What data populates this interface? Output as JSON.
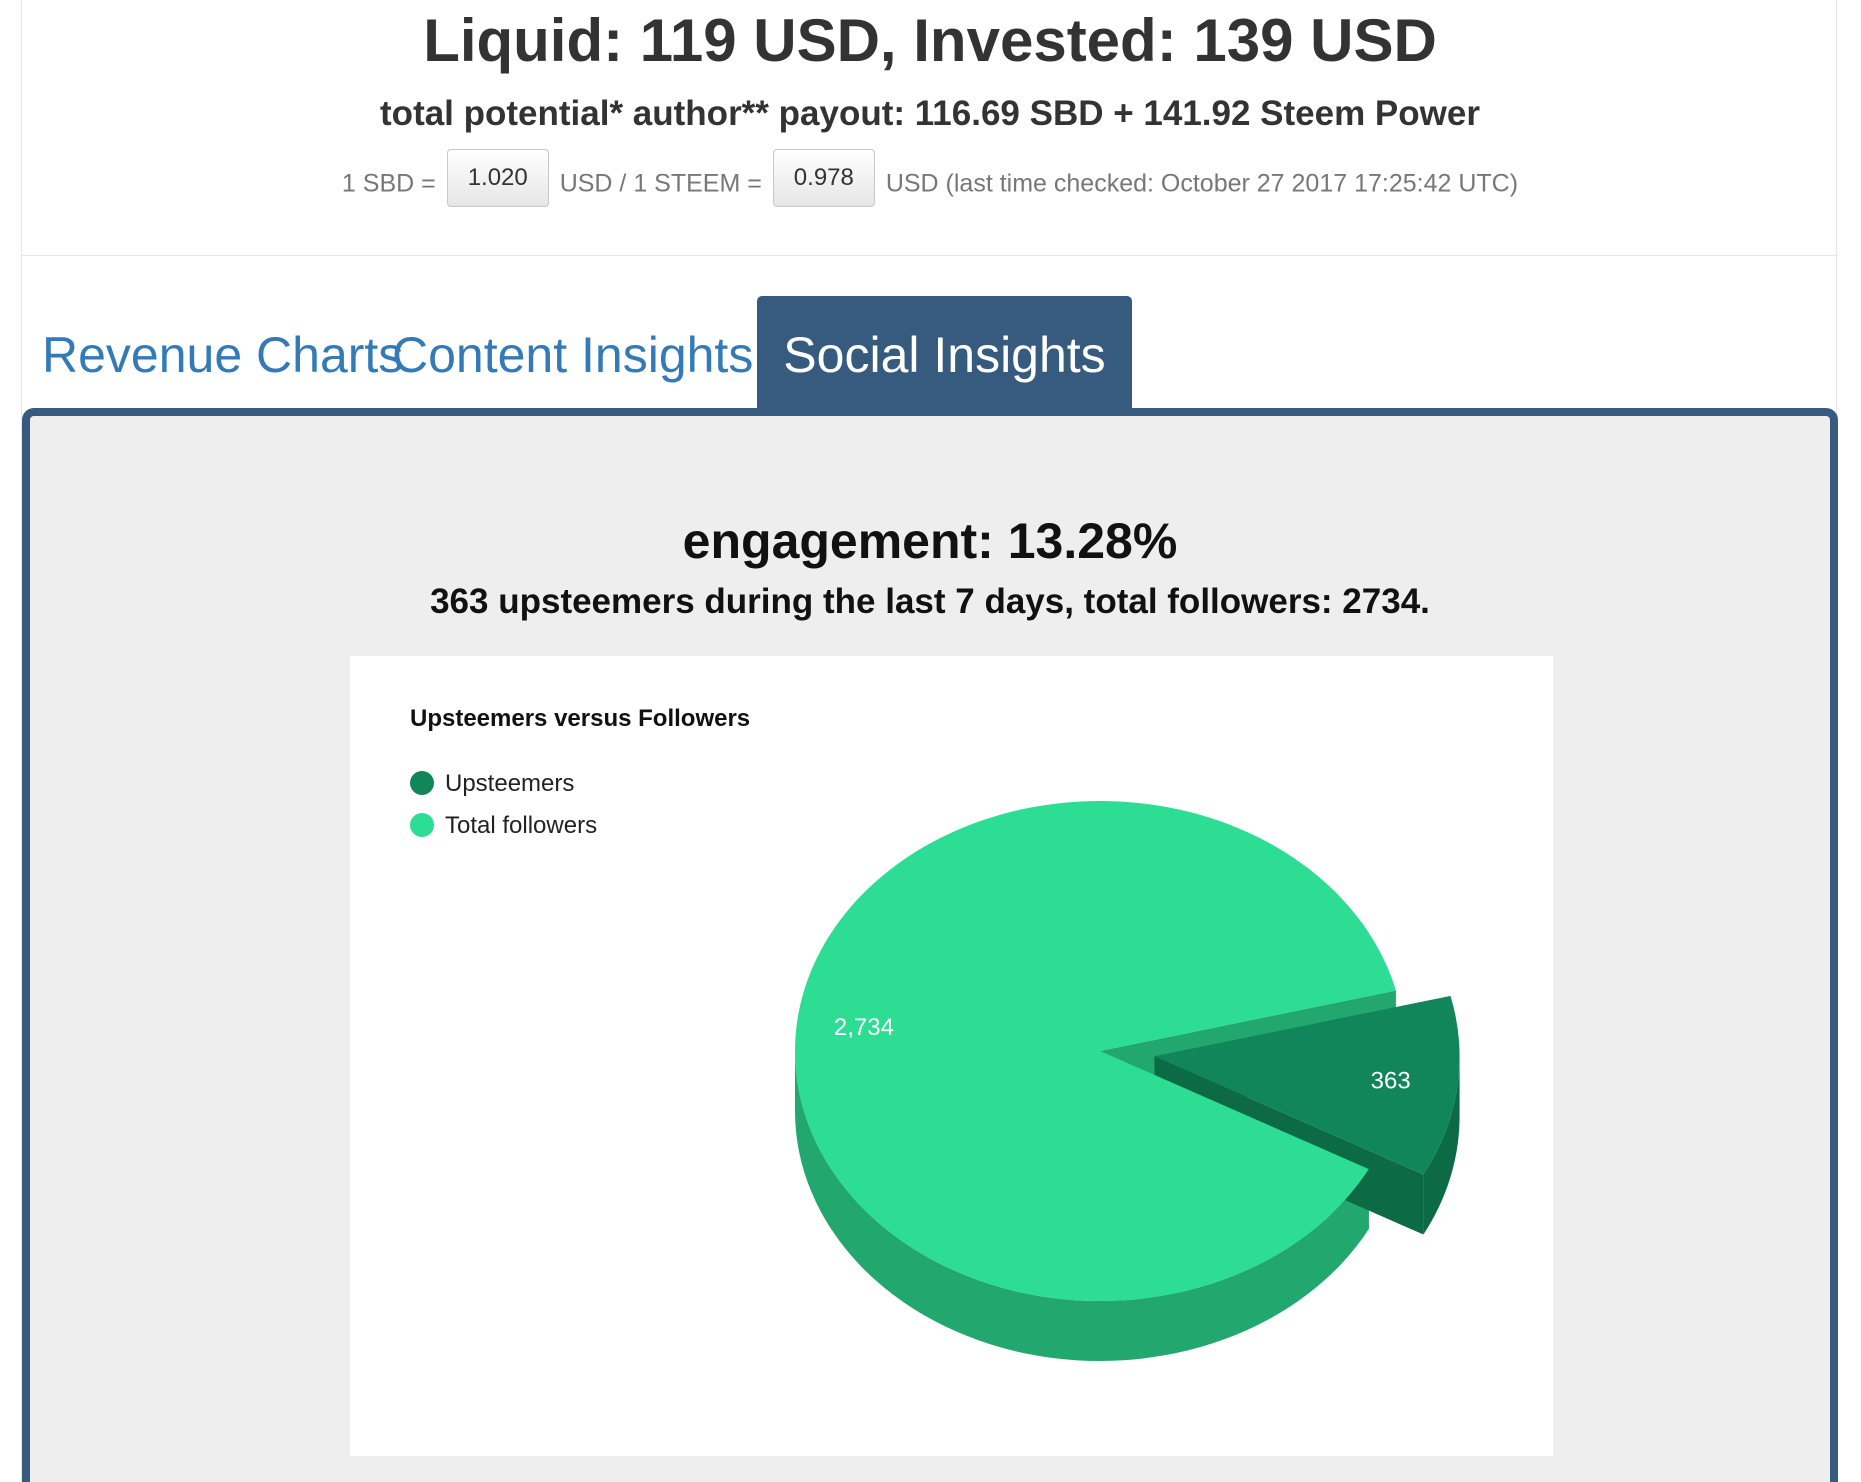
{
  "header": {
    "title": "Liquid: 119 USD, Invested: 139 USD",
    "subtitle": "total potential* author** payout: 116.69 SBD + 141.92 Steem Power",
    "rates": {
      "sbd_prefix": "1 SBD =",
      "sbd_value": "1.020",
      "steem_prefix": "USD / 1 STEEM =",
      "steem_value": "0.978",
      "suffix": "USD (last time checked: October 27 2017 17:25:42 UTC)"
    }
  },
  "tabs": [
    {
      "label": "Revenue Charts",
      "active": false
    },
    {
      "label": "Content Insights",
      "active": false
    },
    {
      "label": "Social Insights",
      "active": true
    }
  ],
  "social": {
    "engagement": "engagement: 13.28%",
    "summary": "363 upsteemers during the last 7 days, total followers: 2734."
  },
  "colors": {
    "tab_active_bg": "#375a7f",
    "link": "#337ab7",
    "upsteemers": "#11865a",
    "followers": "#2ddd93"
  },
  "chart_data": {
    "type": "pie",
    "title": "Upsteemers versus Followers",
    "categories": [
      "Upsteemers",
      "Total followers"
    ],
    "values": [
      363,
      2734
    ],
    "data_labels": [
      "363",
      "2,734"
    ],
    "legend": "top-left",
    "is3d": true,
    "exploded": "Upsteemers"
  }
}
